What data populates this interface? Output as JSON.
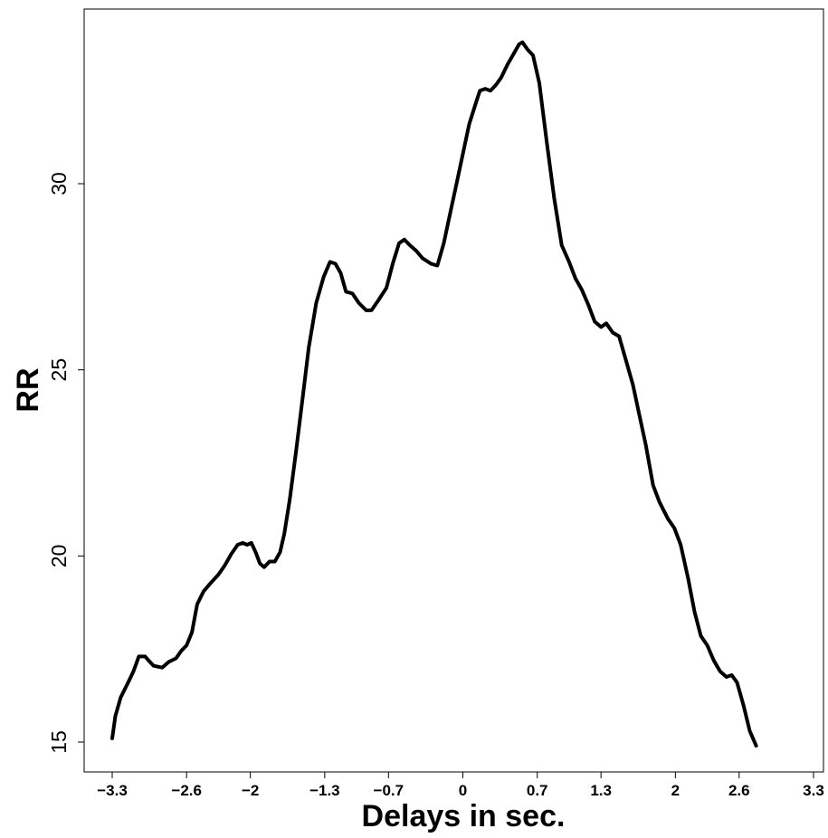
{
  "chart_data": {
    "type": "line",
    "xlabel": "Delays in sec.",
    "ylabel": "RR",
    "xlim": [
      -3.3,
      3.3
    ],
    "ylim": [
      15,
      34
    ],
    "x_ticks": [
      {
        "value": -3.3,
        "label": "−3.3"
      },
      {
        "value": -2.6,
        "label": "−2.6"
      },
      {
        "value": -2.0,
        "label": "−2"
      },
      {
        "value": -1.3,
        "label": "−1.3"
      },
      {
        "value": -0.7,
        "label": "−0.7"
      },
      {
        "value": 0.0,
        "label": "0"
      },
      {
        "value": 0.7,
        "label": "0.7"
      },
      {
        "value": 1.3,
        "label": "1.3"
      },
      {
        "value": 2.0,
        "label": "2"
      },
      {
        "value": 2.6,
        "label": "2.6"
      },
      {
        "value": 3.3,
        "label": "3.3"
      }
    ],
    "y_ticks": [
      {
        "value": 15,
        "label": "15"
      },
      {
        "value": 20,
        "label": "20"
      },
      {
        "value": 25,
        "label": "25"
      },
      {
        "value": 30,
        "label": "30"
      }
    ],
    "grid": false,
    "series": [
      {
        "color": "#000000",
        "points": [
          [
            -3.3,
            15.1
          ],
          [
            -3.27,
            15.7
          ],
          [
            -3.22,
            16.2
          ],
          [
            -3.15,
            16.6
          ],
          [
            -3.1,
            16.9
          ],
          [
            -3.05,
            17.3
          ],
          [
            -2.99,
            17.3
          ],
          [
            -2.96,
            17.2
          ],
          [
            -2.91,
            17.05
          ],
          [
            -2.83,
            17.0
          ],
          [
            -2.77,
            17.15
          ],
          [
            -2.7,
            17.25
          ],
          [
            -2.65,
            17.45
          ],
          [
            -2.6,
            17.6
          ],
          [
            -2.55,
            17.95
          ],
          [
            -2.5,
            18.7
          ],
          [
            -2.44,
            19.05
          ],
          [
            -2.38,
            19.25
          ],
          [
            -2.3,
            19.5
          ],
          [
            -2.24,
            19.75
          ],
          [
            -2.18,
            20.05
          ],
          [
            -2.12,
            20.3
          ],
          [
            -2.07,
            20.35
          ],
          [
            -2.03,
            20.3
          ],
          [
            -1.99,
            20.35
          ],
          [
            -1.95,
            20.1
          ],
          [
            -1.91,
            19.8
          ],
          [
            -1.87,
            19.7
          ],
          [
            -1.82,
            19.85
          ],
          [
            -1.77,
            19.85
          ],
          [
            -1.72,
            20.1
          ],
          [
            -1.68,
            20.6
          ],
          [
            -1.63,
            21.5
          ],
          [
            -1.57,
            22.8
          ],
          [
            -1.51,
            24.2
          ],
          [
            -1.45,
            25.6
          ],
          [
            -1.38,
            26.8
          ],
          [
            -1.31,
            27.5
          ],
          [
            -1.25,
            27.9
          ],
          [
            -1.2,
            27.85
          ],
          [
            -1.15,
            27.6
          ],
          [
            -1.1,
            27.1
          ],
          [
            -1.04,
            27.05
          ],
          [
            -0.98,
            26.8
          ],
          [
            -0.91,
            26.6
          ],
          [
            -0.86,
            26.6
          ],
          [
            -0.8,
            26.85
          ],
          [
            -0.72,
            27.2
          ],
          [
            -0.66,
            27.85
          ],
          [
            -0.6,
            28.4
          ],
          [
            -0.55,
            28.5
          ],
          [
            -0.5,
            28.35
          ],
          [
            -0.44,
            28.2
          ],
          [
            -0.38,
            28.0
          ],
          [
            -0.3,
            27.85
          ],
          [
            -0.24,
            27.8
          ],
          [
            -0.18,
            28.4
          ],
          [
            -0.12,
            29.2
          ],
          [
            -0.06,
            30.0
          ],
          [
            0.0,
            30.8
          ],
          [
            0.06,
            31.6
          ],
          [
            0.12,
            32.15
          ],
          [
            0.16,
            32.5
          ],
          [
            0.21,
            32.55
          ],
          [
            0.26,
            32.5
          ],
          [
            0.31,
            32.65
          ],
          [
            0.36,
            32.85
          ],
          [
            0.42,
            33.2
          ],
          [
            0.48,
            33.5
          ],
          [
            0.53,
            33.75
          ],
          [
            0.56,
            33.8
          ],
          [
            0.61,
            33.6
          ],
          [
            0.66,
            33.45
          ],
          [
            0.72,
            32.7
          ],
          [
            0.79,
            31.1
          ],
          [
            0.86,
            29.6
          ],
          [
            0.93,
            28.35
          ],
          [
            1.0,
            27.9
          ],
          [
            1.06,
            27.45
          ],
          [
            1.12,
            27.15
          ],
          [
            1.18,
            26.75
          ],
          [
            1.24,
            26.3
          ],
          [
            1.3,
            26.15
          ],
          [
            1.35,
            26.25
          ],
          [
            1.41,
            26.0
          ],
          [
            1.47,
            25.9
          ],
          [
            1.53,
            25.3
          ],
          [
            1.6,
            24.6
          ],
          [
            1.66,
            23.8
          ],
          [
            1.72,
            23.0
          ],
          [
            1.79,
            21.9
          ],
          [
            1.85,
            21.45
          ],
          [
            1.93,
            21.0
          ],
          [
            1.99,
            20.75
          ],
          [
            2.05,
            20.3
          ],
          [
            2.12,
            19.4
          ],
          [
            2.18,
            18.5
          ],
          [
            2.24,
            17.85
          ],
          [
            2.3,
            17.6
          ],
          [
            2.36,
            17.2
          ],
          [
            2.42,
            16.9
          ],
          [
            2.48,
            16.75
          ],
          [
            2.53,
            16.8
          ],
          [
            2.58,
            16.6
          ],
          [
            2.64,
            16.0
          ],
          [
            2.7,
            15.3
          ],
          [
            2.76,
            14.9
          ]
        ]
      }
    ]
  }
}
